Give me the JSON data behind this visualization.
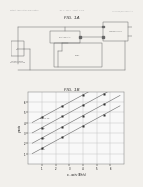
{
  "bg_color": "#f2f0ec",
  "header_color": "#aaaaaa",
  "fig1a_title": "FIG. 1A",
  "fig1b_title": "FIG. 1B",
  "cc": "#666666",
  "lw": 0.35,
  "graph_bg": "#f8f8f8",
  "grid_color": "#bbbbbb",
  "line_color": "#777777",
  "marker_color": "#333333",
  "label_color": "#444444",
  "graph_lines": [
    {
      "label": "Vth=0.7V",
      "intercept": 3.8
    },
    {
      "label": "0.5V",
      "intercept": 2.8
    },
    {
      "label": "0.3V",
      "intercept": 1.8
    },
    {
      "label": "0.1V",
      "intercept": 0.8
    }
  ],
  "x_label": "x - axis (Bit/s)",
  "y_label": "y-axis",
  "slope": 0.72,
  "xlim": [
    0.0,
    7.0
  ],
  "ylim": [
    0.0,
    7.0
  ],
  "xticks": [
    1,
    2,
    3,
    4,
    5,
    6
  ],
  "yticks": [
    1,
    2,
    3,
    4,
    5,
    6
  ]
}
